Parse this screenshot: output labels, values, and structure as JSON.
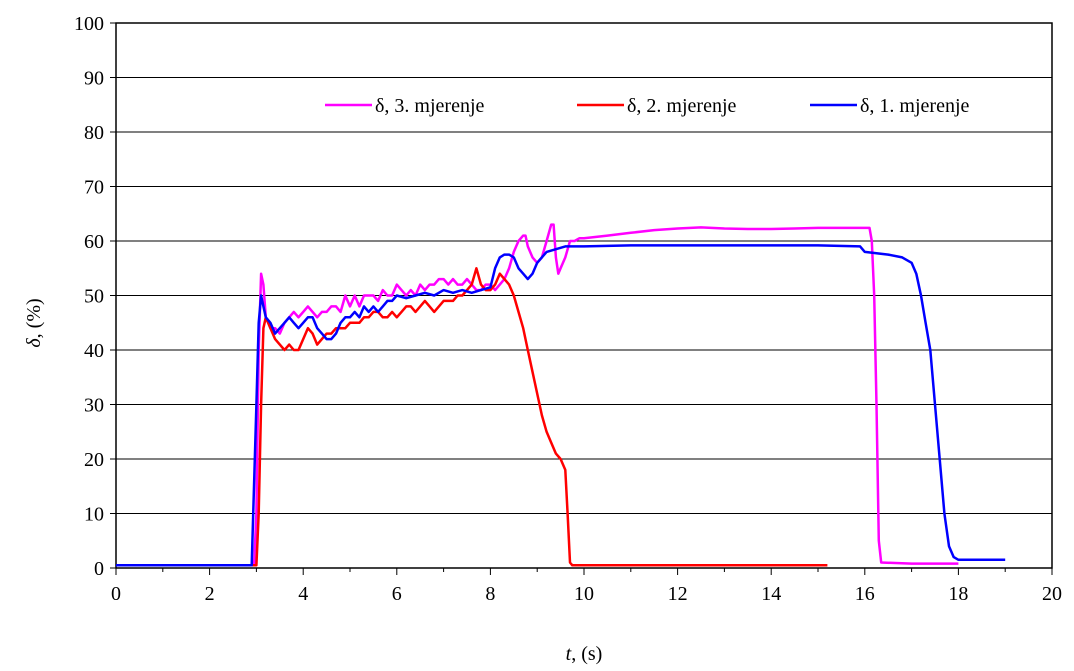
{
  "chart_data": {
    "type": "line",
    "xlabel": {
      "var": "t",
      "unit": ", (s)"
    },
    "ylabel": {
      "var": "δ",
      "unit": ", (%)"
    },
    "xlim": [
      0,
      20
    ],
    "ylim": [
      0,
      100
    ],
    "xticks": [
      0,
      2,
      4,
      6,
      8,
      10,
      12,
      14,
      16,
      18,
      20
    ],
    "yticks": [
      0,
      10,
      20,
      30,
      40,
      50,
      60,
      70,
      80,
      90,
      100
    ],
    "grid": "horizontal",
    "legend_position": "top-right",
    "series": [
      {
        "name": "δ, 3. mjerenje",
        "color": "#ff00ff",
        "x": [
          0,
          1,
          2,
          2.95,
          3.0,
          3.05,
          3.1,
          3.15,
          3.2,
          3.3,
          3.4,
          3.5,
          3.6,
          3.7,
          3.8,
          3.9,
          4.0,
          4.1,
          4.2,
          4.3,
          4.4,
          4.5,
          4.6,
          4.7,
          4.8,
          4.9,
          5.0,
          5.1,
          5.2,
          5.3,
          5.4,
          5.5,
          5.6,
          5.7,
          5.8,
          5.9,
          6.0,
          6.1,
          6.2,
          6.3,
          6.4,
          6.5,
          6.6,
          6.7,
          6.8,
          6.9,
          7.0,
          7.1,
          7.2,
          7.3,
          7.4,
          7.5,
          7.6,
          7.7,
          7.8,
          7.9,
          8.0,
          8.1,
          8.2,
          8.3,
          8.4,
          8.5,
          8.6,
          8.7,
          8.75,
          8.8,
          8.9,
          9.0,
          9.1,
          9.2,
          9.3,
          9.35,
          9.4,
          9.45,
          9.5,
          9.6,
          9.7,
          9.8,
          9.9,
          10,
          10.5,
          11,
          11.5,
          12,
          12.5,
          13,
          13.5,
          14,
          14.5,
          15,
          15.5,
          15.9,
          16.0,
          16.1,
          16.15,
          16.2,
          16.25,
          16.3,
          16.35,
          17,
          18
        ],
        "y": [
          0.5,
          0.5,
          0.5,
          0.5,
          10,
          40,
          54,
          52,
          46,
          44,
          44,
          43,
          45,
          46,
          47,
          46,
          47,
          48,
          47,
          46,
          47,
          47,
          48,
          48,
          47,
          50,
          48,
          50,
          48,
          50,
          50,
          50,
          49,
          51,
          50,
          50,
          52,
          51,
          50,
          51,
          50,
          52,
          51,
          52,
          52,
          53,
          53,
          52,
          53,
          52,
          52,
          53,
          52,
          51,
          51,
          52,
          52,
          51,
          52,
          53,
          55,
          58,
          60,
          61,
          61,
          59,
          57,
          56,
          57,
          60,
          63,
          63,
          57,
          54,
          55,
          57,
          60,
          60,
          60.5,
          60.5,
          61,
          61.5,
          62,
          62.3,
          62.5,
          62.3,
          62.2,
          62.2,
          62.3,
          62.4,
          62.4,
          62.4,
          62.4,
          62.4,
          60,
          50,
          30,
          5,
          1,
          0.8,
          0.8
        ]
      },
      {
        "name": "δ, 2. mjerenje",
        "color": "#ff0000",
        "x": [
          0,
          1,
          2,
          3.0,
          3.05,
          3.1,
          3.15,
          3.2,
          3.3,
          3.4,
          3.5,
          3.6,
          3.7,
          3.8,
          3.9,
          4.0,
          4.1,
          4.2,
          4.3,
          4.4,
          4.5,
          4.6,
          4.7,
          4.8,
          4.9,
          5.0,
          5.1,
          5.2,
          5.3,
          5.4,
          5.5,
          5.6,
          5.7,
          5.8,
          5.9,
          6.0,
          6.1,
          6.2,
          6.3,
          6.4,
          6.5,
          6.6,
          6.7,
          6.8,
          6.9,
          7.0,
          7.1,
          7.2,
          7.3,
          7.4,
          7.5,
          7.6,
          7.7,
          7.8,
          7.9,
          8.0,
          8.1,
          8.2,
          8.3,
          8.4,
          8.5,
          8.6,
          8.7,
          8.8,
          8.9,
          9.0,
          9.1,
          9.2,
          9.3,
          9.4,
          9.5,
          9.6,
          9.65,
          9.7,
          9.75,
          10,
          12,
          14,
          15.2
        ],
        "y": [
          0.5,
          0.5,
          0.5,
          0.5,
          10,
          30,
          44,
          46,
          44,
          42,
          41,
          40,
          41,
          40,
          40,
          42,
          44,
          43,
          41,
          42,
          43,
          43,
          44,
          44,
          44,
          45,
          45,
          45,
          46,
          46,
          47,
          47,
          46,
          46,
          47,
          46,
          47,
          48,
          48,
          47,
          48,
          49,
          48,
          47,
          48,
          49,
          49,
          49,
          50,
          50,
          51,
          52,
          55,
          52,
          51,
          51,
          52,
          54,
          53,
          52,
          50,
          47,
          44,
          40,
          36,
          32,
          28,
          25,
          23,
          21,
          20,
          18,
          10,
          1,
          0.5,
          0.5,
          0.5,
          0.5,
          0.5
        ]
      },
      {
        "name": "δ, 1. mjerenje",
        "color": "#0000ff",
        "x": [
          0,
          1,
          2,
          2.9,
          3.0,
          3.05,
          3.1,
          3.15,
          3.2,
          3.3,
          3.4,
          3.5,
          3.6,
          3.7,
          3.8,
          3.9,
          4.0,
          4.1,
          4.2,
          4.3,
          4.4,
          4.5,
          4.6,
          4.7,
          4.8,
          4.9,
          5.0,
          5.1,
          5.2,
          5.3,
          5.4,
          5.5,
          5.6,
          5.7,
          5.8,
          5.9,
          6.0,
          6.2,
          6.4,
          6.6,
          6.8,
          7.0,
          7.2,
          7.4,
          7.6,
          7.8,
          8.0,
          8.1,
          8.2,
          8.3,
          8.4,
          8.5,
          8.6,
          8.7,
          8.8,
          8.9,
          9.0,
          9.2,
          9.4,
          9.6,
          10,
          11,
          12,
          13,
          14,
          15,
          15.9,
          16.0,
          16.5,
          16.8,
          17.0,
          17.1,
          17.2,
          17.3,
          17.4,
          17.5,
          17.6,
          17.7,
          17.8,
          17.9,
          18.0,
          18.5,
          19
        ],
        "y": [
          0.5,
          0.5,
          0.5,
          0.5,
          30,
          45,
          50,
          48,
          46,
          45,
          43,
          44,
          45,
          46,
          45,
          44,
          45,
          46,
          46,
          44,
          43,
          42,
          42,
          43,
          45,
          46,
          46,
          47,
          46,
          48,
          47,
          48,
          47,
          48,
          49,
          49,
          50,
          49.5,
          50,
          50.5,
          50,
          51,
          50.5,
          51,
          50.5,
          51,
          51.5,
          55,
          57,
          57.5,
          57.5,
          57,
          55,
          54,
          53,
          54,
          56,
          58,
          58.5,
          59,
          59,
          59.2,
          59.2,
          59.2,
          59.2,
          59.2,
          59,
          58,
          57.5,
          57,
          56,
          54,
          50,
          45,
          40,
          30,
          20,
          10,
          4,
          2,
          1.5,
          1.5,
          1.5
        ]
      }
    ]
  }
}
